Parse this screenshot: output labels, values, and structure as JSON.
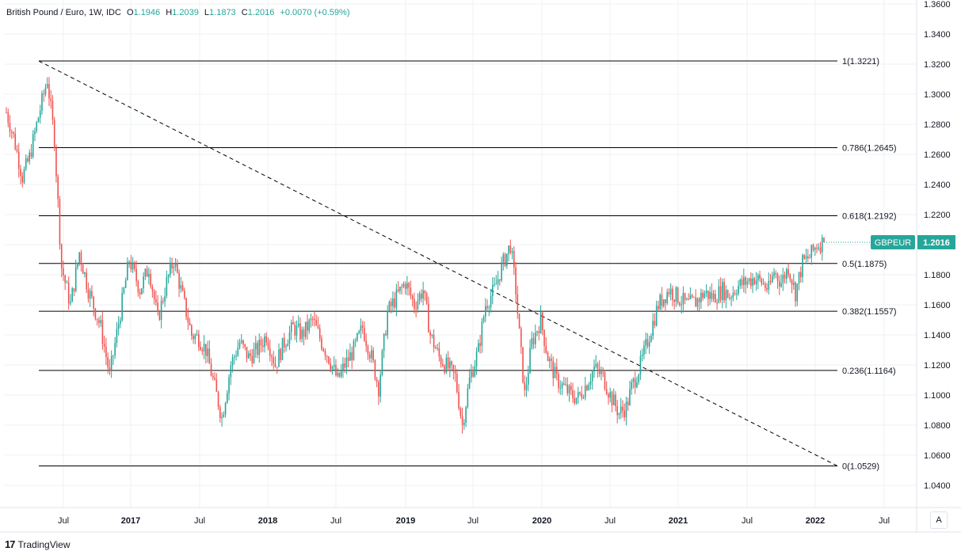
{
  "legend": {
    "symbol": "British Pound / Euro, 1W, IDC",
    "o_label": "O",
    "o": "1.1946",
    "h_label": "H",
    "h": "1.2039",
    "l_label": "L",
    "l": "1.1873",
    "c_label": "C",
    "c": "1.2016",
    "change": "+0.0070 (+0.59%)"
  },
  "branding": "TradingView",
  "auto_scale_label": "A",
  "price_tag": {
    "symbol": "GBPEUR",
    "value": "1.2016"
  },
  "colors": {
    "up": "#26a69a",
    "down": "#ef5350",
    "grid": "#eef0f3",
    "text": "#131722"
  },
  "chart_data": {
    "type": "candlestick",
    "title": "British Pound / Euro, 1W, IDC",
    "ylim": [
      1.03,
      1.36
    ],
    "y_ticks": [
      "1.3600",
      "1.3400",
      "1.3200",
      "1.3000",
      "1.2800",
      "1.2600",
      "1.2400",
      "1.2200",
      "1.2000",
      "1.1800",
      "1.1600",
      "1.1400",
      "1.1200",
      "1.1000",
      "1.0800",
      "1.0600",
      "1.0400"
    ],
    "x_ticks": [
      "Jul",
      "2017",
      "Jul",
      "2018",
      "Jul",
      "2019",
      "Jul",
      "2020",
      "Jul",
      "2021",
      "Jul",
      "2022",
      "Jul"
    ],
    "last_close": 1.2016,
    "fibonacci": {
      "from": "1.3221",
      "to": "1.0529",
      "levels": [
        {
          "label": "1(1.3221)",
          "price": 1.3221
        },
        {
          "label": "0.786(1.2645)",
          "price": 1.2645
        },
        {
          "label": "0.618(1.2192)",
          "price": 1.2192
        },
        {
          "label": "0.5(1.1875)",
          "price": 1.1875
        },
        {
          "label": "0.382(1.1557)",
          "price": 1.1557
        },
        {
          "label": "0.236(1.1164)",
          "price": 1.1164
        },
        {
          "label": "0(1.0529)",
          "price": 1.0529
        }
      ]
    },
    "series_close_path": [
      [
        0,
        1.288
      ],
      [
        4,
        1.272
      ],
      [
        9,
        1.245
      ],
      [
        13,
        1.258
      ],
      [
        18,
        1.285
      ],
      [
        23,
        1.31
      ],
      [
        27,
        1.27
      ],
      [
        31,
        1.185
      ],
      [
        36,
        1.16
      ],
      [
        41,
        1.195
      ],
      [
        46,
        1.17
      ],
      [
        53,
        1.145
      ],
      [
        58,
        1.113
      ],
      [
        64,
        1.155
      ],
      [
        69,
        1.19
      ],
      [
        75,
        1.17
      ],
      [
        80,
        1.185
      ],
      [
        85,
        1.15
      ],
      [
        90,
        1.175
      ],
      [
        94,
        1.19
      ],
      [
        99,
        1.165
      ],
      [
        104,
        1.14
      ],
      [
        108,
        1.138
      ],
      [
        112,
        1.13
      ],
      [
        116,
        1.11
      ],
      [
        121,
        1.085
      ],
      [
        126,
        1.12
      ],
      [
        131,
        1.135
      ],
      [
        136,
        1.125
      ],
      [
        141,
        1.13
      ],
      [
        146,
        1.14
      ],
      [
        151,
        1.12
      ],
      [
        156,
        1.135
      ],
      [
        161,
        1.145
      ],
      [
        166,
        1.14
      ],
      [
        172,
        1.15
      ],
      [
        177,
        1.135
      ],
      [
        181,
        1.125
      ],
      [
        186,
        1.11
      ],
      [
        190,
        1.12
      ],
      [
        195,
        1.13
      ],
      [
        200,
        1.145
      ],
      [
        205,
        1.125
      ],
      [
        209,
        1.105
      ],
      [
        214,
        1.155
      ],
      [
        219,
        1.165
      ],
      [
        224,
        1.175
      ],
      [
        229,
        1.16
      ],
      [
        234,
        1.17
      ],
      [
        238,
        1.14
      ],
      [
        243,
        1.125
      ],
      [
        248,
        1.118
      ],
      [
        252,
        1.112
      ],
      [
        256,
        1.08
      ],
      [
        260,
        1.11
      ],
      [
        265,
        1.13
      ],
      [
        269,
        1.16
      ],
      [
        274,
        1.17
      ],
      [
        278,
        1.185
      ],
      [
        283,
        1.2
      ],
      [
        286,
        1.17
      ],
      [
        288,
        1.14
      ],
      [
        291,
        1.1
      ],
      [
        295,
        1.135
      ],
      [
        300,
        1.15
      ],
      [
        304,
        1.125
      ],
      [
        309,
        1.11
      ],
      [
        313,
        1.105
      ],
      [
        317,
        1.1
      ],
      [
        321,
        1.098
      ],
      [
        326,
        1.108
      ],
      [
        330,
        1.118
      ],
      [
        335,
        1.112
      ],
      [
        339,
        1.1
      ],
      [
        344,
        1.088
      ],
      [
        348,
        1.092
      ],
      [
        351,
        1.105
      ],
      [
        356,
        1.12
      ],
      [
        361,
        1.14
      ],
      [
        366,
        1.16
      ],
      [
        372,
        1.17
      ],
      [
        377,
        1.165
      ],
      [
        382,
        1.16
      ],
      [
        387,
        1.162
      ],
      [
        392,
        1.168
      ],
      [
        397,
        1.165
      ],
      [
        402,
        1.17
      ],
      [
        406,
        1.166
      ],
      [
        410,
        1.172
      ],
      [
        415,
        1.175
      ],
      [
        420,
        1.178
      ],
      [
        424,
        1.175
      ],
      [
        428,
        1.17
      ],
      [
        431,
        1.182
      ],
      [
        435,
        1.175
      ],
      [
        439,
        1.185
      ],
      [
        443,
        1.168
      ],
      [
        447,
        1.188
      ],
      [
        451,
        1.192
      ],
      [
        455,
        1.2
      ],
      [
        459,
        1.2016
      ]
    ]
  }
}
